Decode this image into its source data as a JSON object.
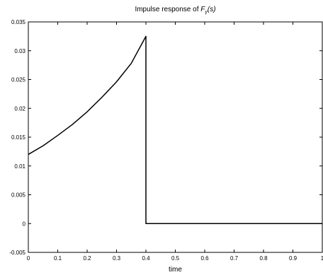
{
  "chart_data": {
    "type": "line",
    "title": {
      "prefix": "Impulse response of ",
      "func": "F",
      "sub": "γ",
      "suffix": "(s)"
    },
    "xlabel": "time",
    "ylabel": "",
    "xlim": [
      0,
      1
    ],
    "ylim": [
      -0.005,
      0.035
    ],
    "grid": false,
    "xticks": [
      0,
      0.1,
      0.2,
      0.3,
      0.4,
      0.5,
      0.6,
      0.7,
      0.8,
      0.9,
      1
    ],
    "xtick_labels": [
      "0",
      "0.1",
      "0.2",
      "0.3",
      "0.4",
      "0.5",
      "0.6",
      "0.7",
      "0.8",
      "0.9",
      "1"
    ],
    "yticks": [
      -0.005,
      0,
      0.005,
      0.01,
      0.015,
      0.02,
      0.025,
      0.03,
      0.035
    ],
    "ytick_labels": [
      "-0.005",
      "0",
      "0.005",
      "0.01",
      "0.015",
      "0.02",
      "0.025",
      "0.03",
      "0.035"
    ],
    "series": [
      {
        "color": "#000000",
        "x": [
          0,
          0.05,
          0.1,
          0.15,
          0.2,
          0.25,
          0.3,
          0.35,
          0.4,
          0.4,
          0.5,
          0.6,
          0.7,
          0.8,
          0.9,
          1
        ],
        "y": [
          0.012,
          0.0135,
          0.0153,
          0.0172,
          0.0194,
          0.0219,
          0.0246,
          0.0278,
          0.0325,
          0,
          0,
          0,
          0,
          0,
          0,
          0
        ]
      }
    ]
  }
}
